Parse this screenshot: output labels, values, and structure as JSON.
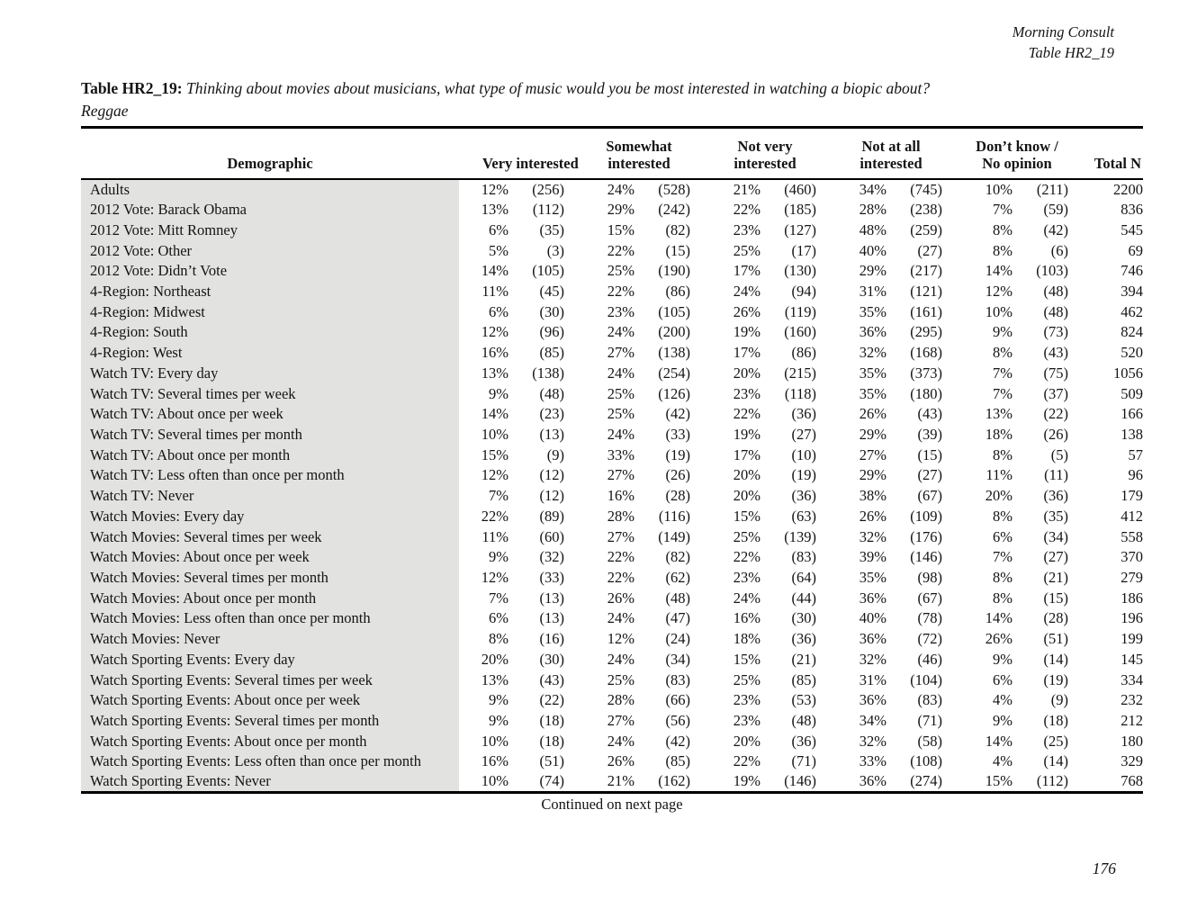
{
  "meta": {
    "source_line1": "Morning Consult",
    "source_line2": "Table HR2_19"
  },
  "title": {
    "label": "Table HR2_19:",
    "question": "Thinking about movies about musicians, what type of music would you be most interested in watching a biopic about?",
    "subject": "Reggae"
  },
  "table": {
    "demographic_header": "Demographic",
    "group_headers": [
      {
        "line1": "",
        "line2": "Very interested"
      },
      {
        "line1": "Somewhat",
        "line2": "interested"
      },
      {
        "line1": "Not very",
        "line2": "interested"
      },
      {
        "line1": "Not at all",
        "line2": "interested"
      },
      {
        "line1": "Don’t know /",
        "line2": "No opinion"
      }
    ],
    "total_header": "Total N",
    "rows": [
      {
        "demographic": "Adults",
        "values": [
          "12%",
          "(256)",
          "24%",
          "(528)",
          "21%",
          "(460)",
          "34%",
          "(745)",
          "10%",
          "(211)",
          "2200"
        ]
      },
      {
        "demographic": "2012 Vote: Barack Obama",
        "values": [
          "13%",
          "(112)",
          "29%",
          "(242)",
          "22%",
          "(185)",
          "28%",
          "(238)",
          "7%",
          "(59)",
          "836"
        ]
      },
      {
        "demographic": "2012 Vote: Mitt Romney",
        "values": [
          "6%",
          "(35)",
          "15%",
          "(82)",
          "23%",
          "(127)",
          "48%",
          "(259)",
          "8%",
          "(42)",
          "545"
        ]
      },
      {
        "demographic": "2012 Vote: Other",
        "values": [
          "5%",
          "(3)",
          "22%",
          "(15)",
          "25%",
          "(17)",
          "40%",
          "(27)",
          "8%",
          "(6)",
          "69"
        ]
      },
      {
        "demographic": "2012 Vote: Didn’t Vote",
        "values": [
          "14%",
          "(105)",
          "25%",
          "(190)",
          "17%",
          "(130)",
          "29%",
          "(217)",
          "14%",
          "(103)",
          "746"
        ]
      },
      {
        "demographic": "4-Region: Northeast",
        "values": [
          "11%",
          "(45)",
          "22%",
          "(86)",
          "24%",
          "(94)",
          "31%",
          "(121)",
          "12%",
          "(48)",
          "394"
        ]
      },
      {
        "demographic": "4-Region: Midwest",
        "values": [
          "6%",
          "(30)",
          "23%",
          "(105)",
          "26%",
          "(119)",
          "35%",
          "(161)",
          "10%",
          "(48)",
          "462"
        ]
      },
      {
        "demographic": "4-Region: South",
        "values": [
          "12%",
          "(96)",
          "24%",
          "(200)",
          "19%",
          "(160)",
          "36%",
          "(295)",
          "9%",
          "(73)",
          "824"
        ]
      },
      {
        "demographic": "4-Region: West",
        "values": [
          "16%",
          "(85)",
          "27%",
          "(138)",
          "17%",
          "(86)",
          "32%",
          "(168)",
          "8%",
          "(43)",
          "520"
        ]
      },
      {
        "demographic": "Watch TV: Every day",
        "values": [
          "13%",
          "(138)",
          "24%",
          "(254)",
          "20%",
          "(215)",
          "35%",
          "(373)",
          "7%",
          "(75)",
          "1056"
        ]
      },
      {
        "demographic": "Watch TV: Several times per week",
        "values": [
          "9%",
          "(48)",
          "25%",
          "(126)",
          "23%",
          "(118)",
          "35%",
          "(180)",
          "7%",
          "(37)",
          "509"
        ]
      },
      {
        "demographic": "Watch TV: About once per week",
        "values": [
          "14%",
          "(23)",
          "25%",
          "(42)",
          "22%",
          "(36)",
          "26%",
          "(43)",
          "13%",
          "(22)",
          "166"
        ]
      },
      {
        "demographic": "Watch TV: Several times per month",
        "values": [
          "10%",
          "(13)",
          "24%",
          "(33)",
          "19%",
          "(27)",
          "29%",
          "(39)",
          "18%",
          "(26)",
          "138"
        ]
      },
      {
        "demographic": "Watch TV: About once per month",
        "values": [
          "15%",
          "(9)",
          "33%",
          "(19)",
          "17%",
          "(10)",
          "27%",
          "(15)",
          "8%",
          "(5)",
          "57"
        ]
      },
      {
        "demographic": "Watch TV: Less often than once per month",
        "values": [
          "12%",
          "(12)",
          "27%",
          "(26)",
          "20%",
          "(19)",
          "29%",
          "(27)",
          "11%",
          "(11)",
          "96"
        ]
      },
      {
        "demographic": "Watch TV: Never",
        "values": [
          "7%",
          "(12)",
          "16%",
          "(28)",
          "20%",
          "(36)",
          "38%",
          "(67)",
          "20%",
          "(36)",
          "179"
        ]
      },
      {
        "demographic": "Watch Movies: Every day",
        "values": [
          "22%",
          "(89)",
          "28%",
          "(116)",
          "15%",
          "(63)",
          "26%",
          "(109)",
          "8%",
          "(35)",
          "412"
        ]
      },
      {
        "demographic": "Watch Movies: Several times per week",
        "values": [
          "11%",
          "(60)",
          "27%",
          "(149)",
          "25%",
          "(139)",
          "32%",
          "(176)",
          "6%",
          "(34)",
          "558"
        ]
      },
      {
        "demographic": "Watch Movies: About once per week",
        "values": [
          "9%",
          "(32)",
          "22%",
          "(82)",
          "22%",
          "(83)",
          "39%",
          "(146)",
          "7%",
          "(27)",
          "370"
        ]
      },
      {
        "demographic": "Watch Movies: Several times per month",
        "values": [
          "12%",
          "(33)",
          "22%",
          "(62)",
          "23%",
          "(64)",
          "35%",
          "(98)",
          "8%",
          "(21)",
          "279"
        ]
      },
      {
        "demographic": "Watch Movies: About once per month",
        "values": [
          "7%",
          "(13)",
          "26%",
          "(48)",
          "24%",
          "(44)",
          "36%",
          "(67)",
          "8%",
          "(15)",
          "186"
        ]
      },
      {
        "demographic": "Watch Movies: Less often than once per month",
        "values": [
          "6%",
          "(13)",
          "24%",
          "(47)",
          "16%",
          "(30)",
          "40%",
          "(78)",
          "14%",
          "(28)",
          "196"
        ]
      },
      {
        "demographic": "Watch Movies: Never",
        "values": [
          "8%",
          "(16)",
          "12%",
          "(24)",
          "18%",
          "(36)",
          "36%",
          "(72)",
          "26%",
          "(51)",
          "199"
        ]
      },
      {
        "demographic": "Watch Sporting Events: Every day",
        "values": [
          "20%",
          "(30)",
          "24%",
          "(34)",
          "15%",
          "(21)",
          "32%",
          "(46)",
          "9%",
          "(14)",
          "145"
        ]
      },
      {
        "demographic": "Watch Sporting Events: Several times per week",
        "values": [
          "13%",
          "(43)",
          "25%",
          "(83)",
          "25%",
          "(85)",
          "31%",
          "(104)",
          "6%",
          "(19)",
          "334"
        ]
      },
      {
        "demographic": "Watch Sporting Events: About once per week",
        "values": [
          "9%",
          "(22)",
          "28%",
          "(66)",
          "23%",
          "(53)",
          "36%",
          "(83)",
          "4%",
          "(9)",
          "232"
        ]
      },
      {
        "demographic": "Watch Sporting Events: Several times per month",
        "values": [
          "9%",
          "(18)",
          "27%",
          "(56)",
          "23%",
          "(48)",
          "34%",
          "(71)",
          "9%",
          "(18)",
          "212"
        ]
      },
      {
        "demographic": "Watch Sporting Events: About once per month",
        "values": [
          "10%",
          "(18)",
          "24%",
          "(42)",
          "20%",
          "(36)",
          "32%",
          "(58)",
          "14%",
          "(25)",
          "180"
        ]
      },
      {
        "demographic": "Watch Sporting Events: Less often than once per month",
        "values": [
          "16%",
          "(51)",
          "26%",
          "(85)",
          "22%",
          "(71)",
          "33%",
          "(108)",
          "4%",
          "(14)",
          "329"
        ]
      },
      {
        "demographic": "Watch Sporting Events: Never",
        "values": [
          "10%",
          "(74)",
          "21%",
          "(162)",
          "19%",
          "(146)",
          "36%",
          "(274)",
          "15%",
          "(112)",
          "768"
        ]
      }
    ]
  },
  "footer": {
    "continued": "Continued on next page",
    "page_number": "176"
  }
}
